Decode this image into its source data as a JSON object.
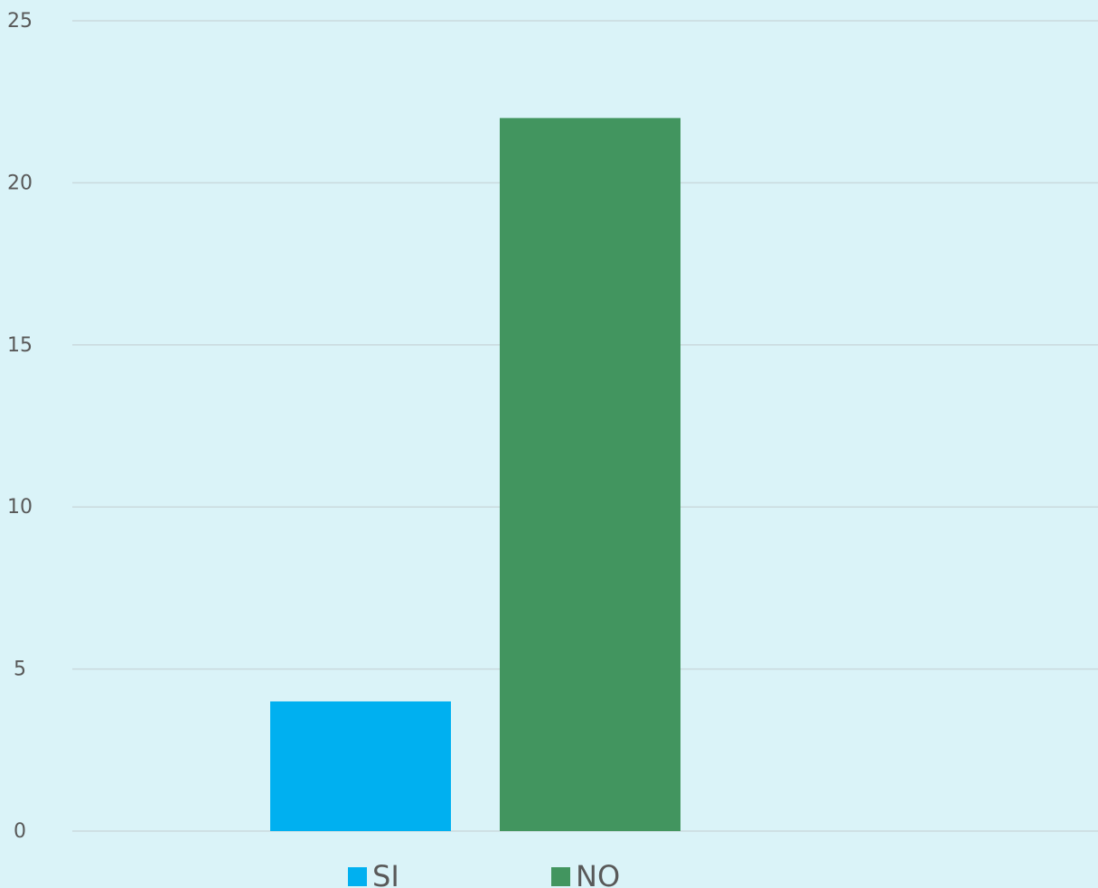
{
  "chart_data": {
    "type": "bar",
    "categories": [
      null
    ],
    "series": [
      {
        "name": "SI",
        "color": "#00b0f0",
        "values": [
          4
        ]
      },
      {
        "name": "NO",
        "color": "#42955f",
        "values": [
          22
        ]
      }
    ],
    "ylim": [
      0,
      25
    ],
    "yticks": [
      0,
      5,
      10,
      15,
      20,
      25
    ],
    "grid": true,
    "legend": "bottom"
  }
}
